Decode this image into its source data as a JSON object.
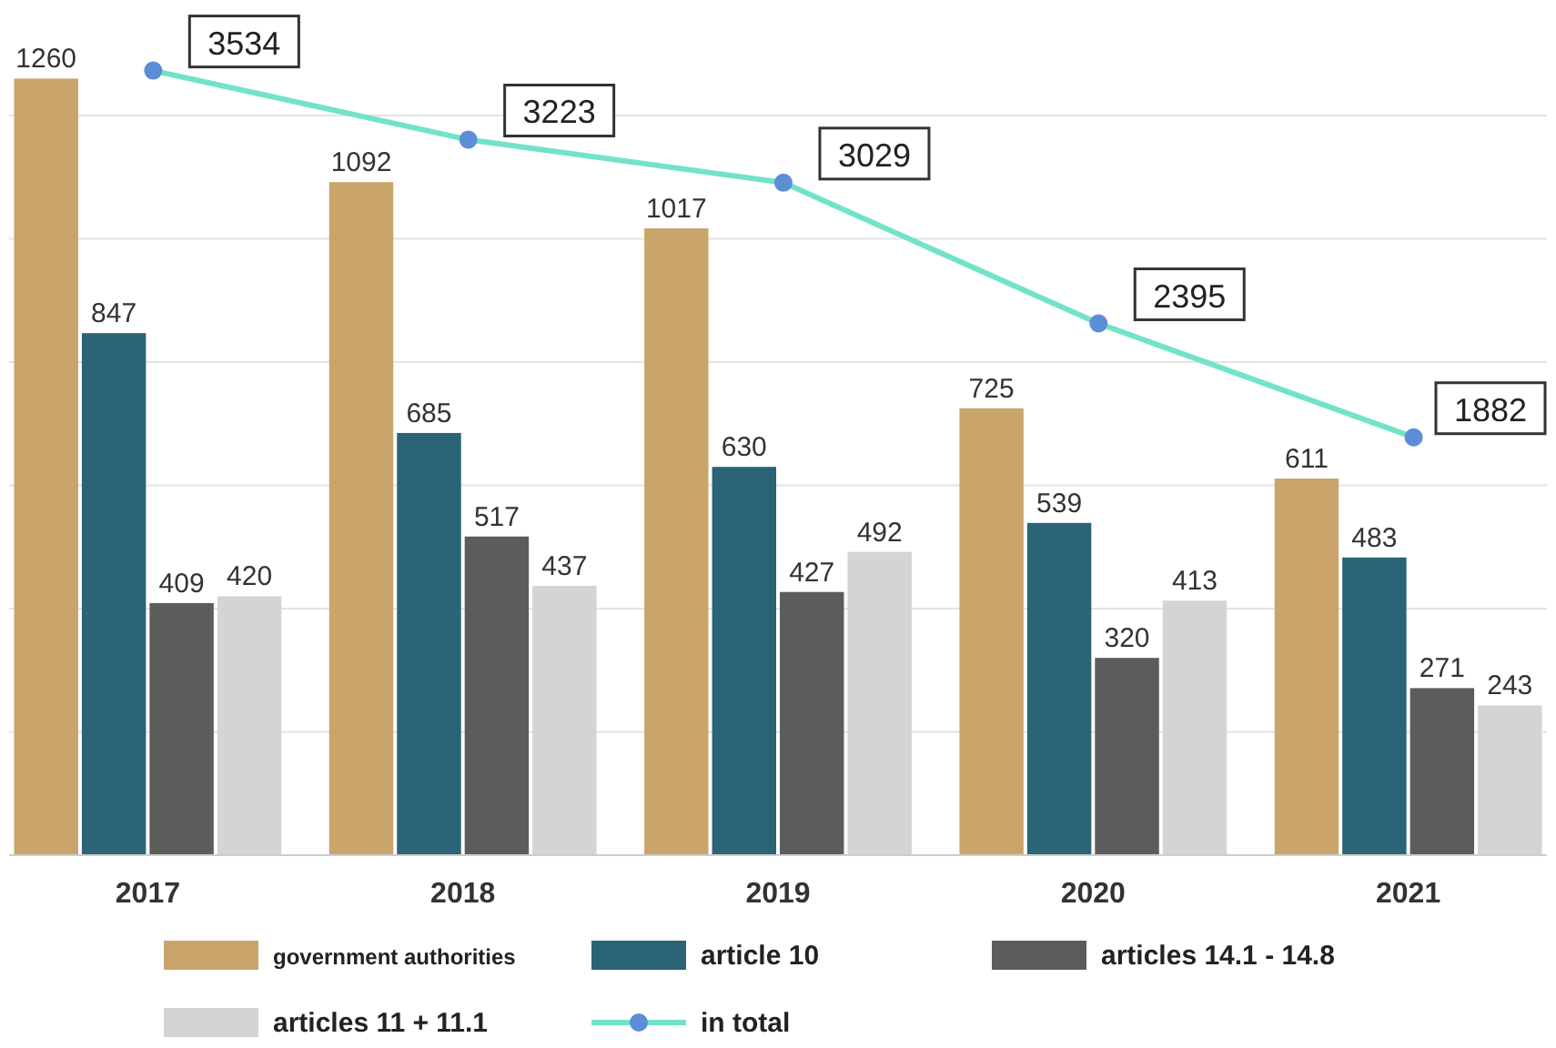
{
  "chart_data": {
    "type": "bar",
    "categories": [
      "2017",
      "2018",
      "2019",
      "2020",
      "2021"
    ],
    "series": [
      {
        "name": "government authorities",
        "color": "#c9a56b",
        "values": [
          1260,
          1092,
          1017,
          725,
          611
        ]
      },
      {
        "name": "article 10",
        "color": "#2b6377",
        "values": [
          847,
          685,
          630,
          539,
          483
        ]
      },
      {
        "name": "articles 14.1 - 14.8",
        "color": "#5c5c5c",
        "values": [
          409,
          517,
          427,
          320,
          271
        ]
      },
      {
        "name": "articles 11 + 11.1",
        "color": "#d4d4d4",
        "values": [
          420,
          437,
          492,
          413,
          243
        ]
      },
      {
        "name": "in total",
        "type": "line",
        "axis": "y2",
        "color": "#72e3c9",
        "values": [
          3534,
          3223,
          3029,
          2395,
          1882
        ]
      }
    ],
    "yticks": [
      {
        "value": 0,
        "label": null
      },
      {
        "value": 200,
        "label": null
      },
      {
        "value": 400,
        "label": null
      },
      {
        "value": 600,
        "label": null
      },
      {
        "value": 800,
        "label": null
      },
      {
        "value": 1000,
        "label": null
      },
      {
        "value": 1200,
        "label": null
      }
    ],
    "grid": "y",
    "data_labels": true,
    "legend": "bottom",
    "marker": "circle",
    "tick_labels": "x"
  }
}
